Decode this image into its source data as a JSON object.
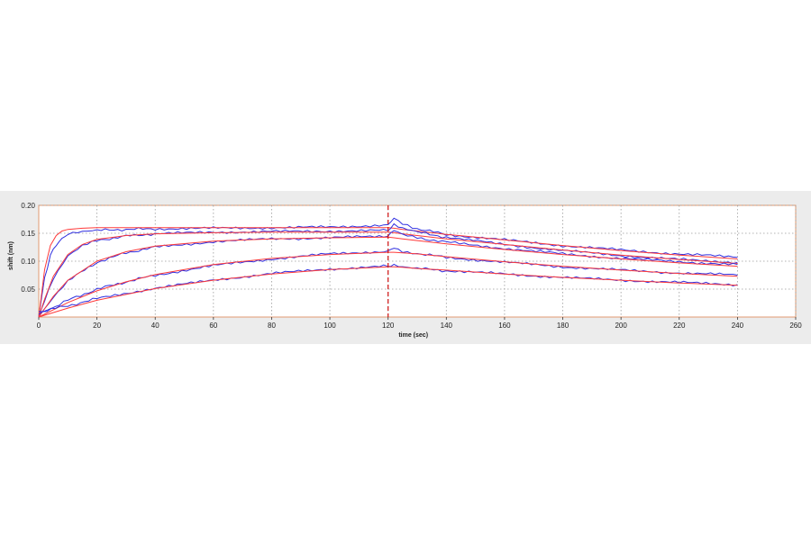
{
  "chart_data": {
    "type": "line",
    "xlabel": "time (sec)",
    "ylabel": "shift (nm)",
    "xlim": [
      0,
      260
    ],
    "ylim": [
      0,
      0.2
    ],
    "xticks": [
      0,
      20,
      40,
      60,
      80,
      100,
      120,
      140,
      160,
      180,
      200,
      220,
      240,
      260
    ],
    "yticks": [
      0.05,
      0.1,
      0.15,
      0.2
    ],
    "ytick_labels": [
      "0.05",
      "0.10",
      "0.15",
      "0.20"
    ],
    "grid": true,
    "dissociation_start": 120,
    "colors": {
      "measured": "#2f2fe0",
      "fit": "#ff3a3a",
      "marker": "#d01010",
      "axis": "#e09a70"
    },
    "series": [
      {
        "x": [
          0,
          2,
          4,
          6,
          8,
          10,
          15,
          20,
          30,
          40,
          60,
          80,
          100,
          120,
          122,
          125,
          130,
          140,
          160,
          180,
          200,
          220,
          240
        ],
        "measured": [
          0,
          0.07,
          0.11,
          0.13,
          0.14,
          0.148,
          0.152,
          0.155,
          0.157,
          0.158,
          0.159,
          0.16,
          0.161,
          0.165,
          0.178,
          0.168,
          0.158,
          0.148,
          0.138,
          0.128,
          0.12,
          0.113,
          0.107
        ],
        "fit": [
          0,
          0.085,
          0.128,
          0.146,
          0.154,
          0.157,
          0.159,
          0.16,
          0.16,
          0.16,
          0.16,
          0.16,
          0.16,
          0.16,
          0.159,
          0.157,
          0.154,
          0.148,
          0.138,
          0.128,
          0.119,
          0.111,
          0.104
        ]
      },
      {
        "x": [
          0,
          2,
          5,
          10,
          15,
          20,
          30,
          40,
          60,
          80,
          100,
          120,
          122,
          125,
          130,
          140,
          160,
          180,
          200,
          220,
          240
        ],
        "measured": [
          0,
          0.03,
          0.07,
          0.11,
          0.128,
          0.137,
          0.145,
          0.149,
          0.152,
          0.153,
          0.154,
          0.155,
          0.165,
          0.158,
          0.152,
          0.143,
          0.13,
          0.119,
          0.11,
          0.103,
          0.098
        ],
        "fit": [
          0,
          0.032,
          0.073,
          0.112,
          0.13,
          0.139,
          0.146,
          0.149,
          0.151,
          0.152,
          0.152,
          0.152,
          0.151,
          0.149,
          0.146,
          0.14,
          0.13,
          0.12,
          0.111,
          0.103,
          0.096
        ]
      },
      {
        "x": [
          0,
          5,
          10,
          20,
          30,
          40,
          60,
          80,
          100,
          120,
          122,
          125,
          130,
          140,
          160,
          180,
          200,
          220,
          240
        ],
        "measured": [
          0,
          0.035,
          0.065,
          0.098,
          0.115,
          0.125,
          0.135,
          0.14,
          0.142,
          0.145,
          0.155,
          0.148,
          0.142,
          0.134,
          0.123,
          0.113,
          0.105,
          0.099,
          0.094
        ],
        "fit": [
          0,
          0.037,
          0.066,
          0.1,
          0.117,
          0.127,
          0.136,
          0.14,
          0.142,
          0.143,
          0.142,
          0.14,
          0.137,
          0.131,
          0.121,
          0.112,
          0.104,
          0.097,
          0.091
        ]
      },
      {
        "x": [
          0,
          10,
          20,
          30,
          40,
          60,
          80,
          100,
          120,
          122,
          125,
          130,
          140,
          160,
          180,
          200,
          220,
          240
        ],
        "measured": [
          0.005,
          0.03,
          0.05,
          0.063,
          0.075,
          0.092,
          0.104,
          0.113,
          0.118,
          0.125,
          0.118,
          0.114,
          0.107,
          0.098,
          0.09,
          0.084,
          0.079,
          0.075
        ],
        "fit": [
          0,
          0.026,
          0.047,
          0.063,
          0.076,
          0.094,
          0.105,
          0.112,
          0.116,
          0.116,
          0.115,
          0.113,
          0.108,
          0.099,
          0.091,
          0.084,
          0.078,
          0.073
        ]
      },
      {
        "x": [
          0,
          10,
          20,
          40,
          60,
          80,
          100,
          120,
          122,
          125,
          130,
          140,
          160,
          180,
          200,
          220,
          240
        ],
        "measured": [
          0.01,
          0.02,
          0.033,
          0.052,
          0.066,
          0.078,
          0.086,
          0.091,
          0.093,
          0.089,
          0.087,
          0.083,
          0.077,
          0.071,
          0.066,
          0.062,
          0.058
        ],
        "fit": [
          0,
          0.016,
          0.03,
          0.051,
          0.066,
          0.077,
          0.085,
          0.09,
          0.09,
          0.089,
          0.087,
          0.084,
          0.077,
          0.071,
          0.066,
          0.061,
          0.057
        ]
      }
    ]
  }
}
